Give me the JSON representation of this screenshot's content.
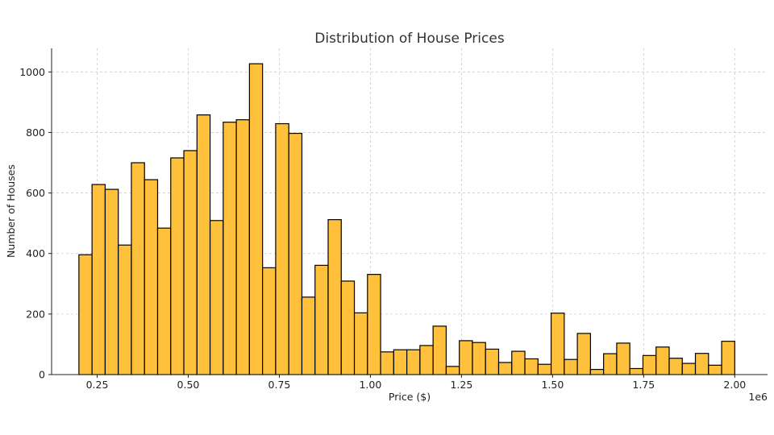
{
  "chart_data": {
    "type": "histogram",
    "title": "Distribution of House Prices",
    "xlabel": "Price ($)",
    "ylabel": "Number of Houses",
    "x_offset_text": "1e6",
    "xlim": [
      0.125,
      2.09
    ],
    "ylim": [
      0,
      1078
    ],
    "xticks": [
      0.25,
      0.5,
      0.75,
      1.0,
      1.25,
      1.5,
      1.75,
      2.0
    ],
    "xtick_labels": [
      "0.25",
      "0.50",
      "0.75",
      "1.00",
      "1.25",
      "1.50",
      "1.75",
      "2.00"
    ],
    "yticks": [
      0,
      200,
      400,
      600,
      800,
      1000
    ],
    "ytick_labels": [
      "0",
      "200",
      "400",
      "600",
      "800",
      "1000"
    ],
    "grid": true,
    "bar_color": "#ffc13b",
    "bin_start": 0.2,
    "bin_end": 2.0,
    "counts": [
      396,
      628,
      612,
      428,
      700,
      644,
      484,
      716,
      740,
      858,
      509,
      834,
      842,
      1027,
      353,
      829,
      797,
      256,
      361,
      512,
      309,
      204,
      331,
      75,
      82,
      82,
      96,
      160,
      27,
      112,
      106,
      84,
      40,
      77,
      52,
      34,
      203,
      50,
      136,
      17,
      69,
      104,
      20,
      63,
      91,
      54,
      37,
      70,
      31,
      110
    ]
  }
}
